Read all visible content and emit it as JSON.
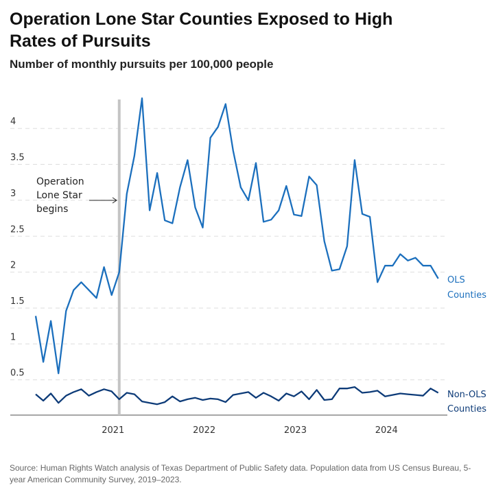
{
  "title": "Operation Lone Star Counties Exposed to High Rates of Pursuits",
  "subtitle": "Number of monthly pursuits per 100,000 people",
  "source": "Source: Human Rights Watch analysis of Texas Department of Public Safety data. Population data from US Census Bureau, 5-year American Community Survey, 2019–2023.",
  "chart_data": {
    "type": "line",
    "title": "Operation Lone Star Counties Exposed to High Rates of Pursuits",
    "subtitle": "Number of monthly pursuits per 100,000 people",
    "x_start": "2020-02",
    "x_end": "2024-07",
    "x_frequency": "monthly",
    "x_ticks": [
      "2021",
      "2022",
      "2023",
      "2024"
    ],
    "y_ticks": [
      0.5,
      1,
      1.5,
      2,
      2.5,
      3,
      3.5,
      4
    ],
    "y_tick_labels": [
      "0.5",
      "1",
      "1.5",
      "2",
      "2.5",
      "3",
      "3.5",
      "4"
    ],
    "ylim": [
      0,
      4.45
    ],
    "grid": "horizontal dashed",
    "annotation": {
      "lines": [
        "Operation",
        "Lone Star",
        "begins"
      ],
      "date": "2021-01"
    },
    "series": [
      {
        "name": "OLS Counties",
        "label_lines": [
          "OLS",
          "Counties"
        ],
        "color": "#1b6fbd",
        "values": [
          1.39,
          0.75,
          1.32,
          0.59,
          1.46,
          1.75,
          1.86,
          1.75,
          1.64,
          2.07,
          1.68,
          2.0,
          3.09,
          3.62,
          4.42,
          2.86,
          3.38,
          2.72,
          2.68,
          3.18,
          3.56,
          2.9,
          2.62,
          3.87,
          4.02,
          4.34,
          3.69,
          3.18,
          3.0,
          3.52,
          2.7,
          2.73,
          2.86,
          3.2,
          2.8,
          2.78,
          3.33,
          3.21,
          2.43,
          2.02,
          2.04,
          2.36,
          3.56,
          2.81,
          2.77,
          1.86,
          2.09,
          2.09,
          2.25,
          2.16,
          2.2,
          2.09,
          2.09,
          1.91
        ]
      },
      {
        "name": "Non-OLS Counties",
        "label_lines": [
          "Non-OLS",
          "Counties"
        ],
        "color": "#0d3b78",
        "values": [
          0.3,
          0.21,
          0.31,
          0.18,
          0.28,
          0.33,
          0.37,
          0.28,
          0.33,
          0.37,
          0.34,
          0.23,
          0.32,
          0.3,
          0.2,
          0.18,
          0.16,
          0.19,
          0.27,
          0.2,
          0.23,
          0.25,
          0.22,
          0.24,
          0.23,
          0.19,
          0.29,
          0.31,
          0.33,
          0.25,
          0.32,
          0.27,
          0.21,
          0.31,
          0.27,
          0.34,
          0.23,
          0.36,
          0.22,
          0.23,
          0.38,
          0.38,
          0.4,
          0.32,
          0.33,
          0.35,
          0.27,
          0.29,
          0.31,
          0.3,
          0.29,
          0.28,
          0.38,
          0.32
        ]
      }
    ]
  }
}
